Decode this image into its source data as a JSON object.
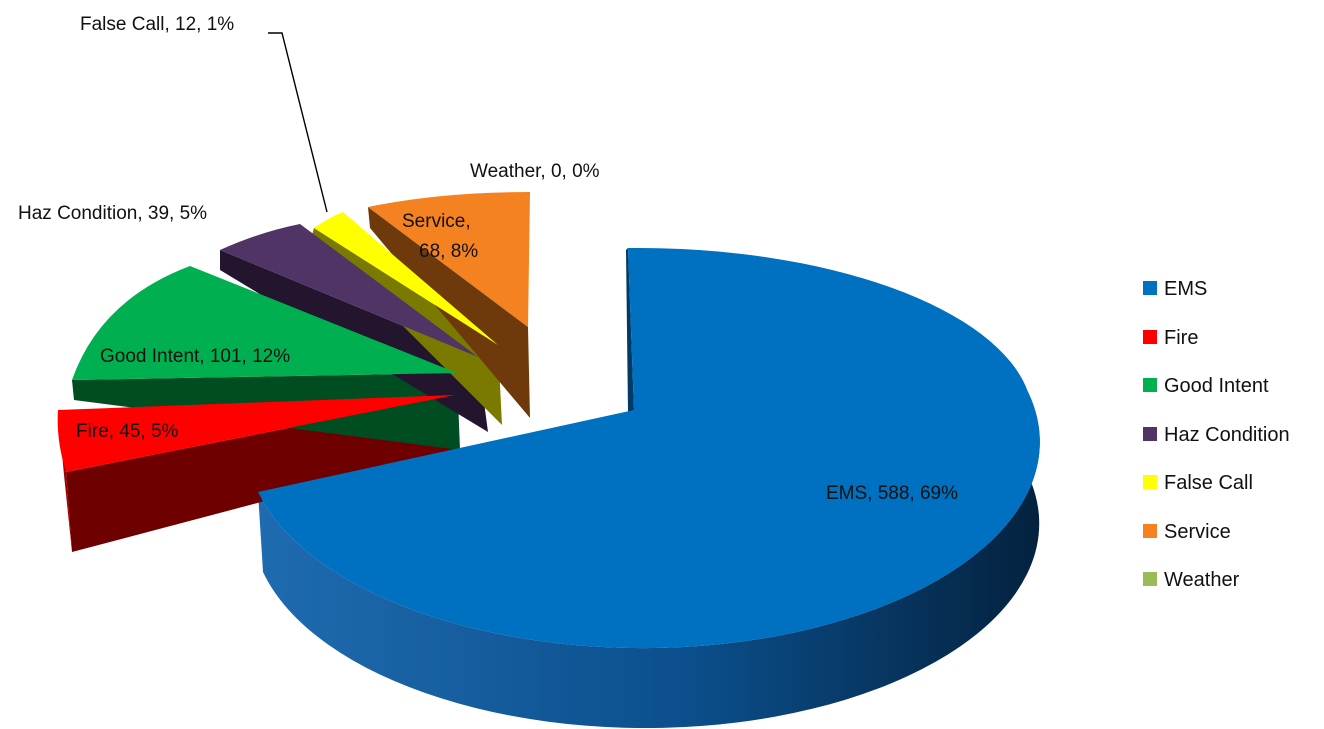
{
  "chart_data": {
    "type": "pie",
    "style": "3d-exploded",
    "title": "",
    "legend_position": "right",
    "slices": [
      {
        "name": "EMS",
        "value": 588,
        "percent": 69,
        "label": "EMS, 588, 69%",
        "color": "#0070C0",
        "side_color": "#003A66"
      },
      {
        "name": "Fire",
        "value": 45,
        "percent": 5,
        "label": "Fire, 45, 5%",
        "color": "#FF0000",
        "side_color": "#6E0000"
      },
      {
        "name": "Good Intent",
        "value": 101,
        "percent": 12,
        "label": "Good Intent, 101, 12%",
        "color": "#00B050",
        "side_color": "#004D22"
      },
      {
        "name": "Haz Condition",
        "value": 39,
        "percent": 5,
        "label": "Haz Condition, 39, 5%",
        "color": "#4F3465",
        "side_color": "#24152F"
      },
      {
        "name": "False Call",
        "value": 12,
        "percent": 1,
        "label": "False Call, 12, 1%",
        "color": "#FFFF00",
        "side_color": "#7A7A00"
      },
      {
        "name": "Service",
        "value": 68,
        "percent": 8,
        "label_lines": [
          "Service,",
          "68, 8%"
        ],
        "color": "#F58220",
        "side_color": "#6E3A0C"
      },
      {
        "name": "Weather",
        "value": 0,
        "percent": 0,
        "label": "Weather, 0, 0%",
        "color": "#9BBB59",
        "side_color": "#4A5A2A"
      }
    ]
  }
}
